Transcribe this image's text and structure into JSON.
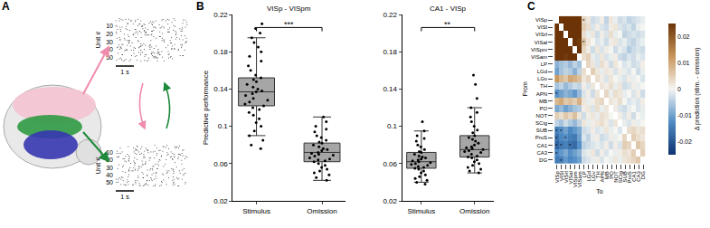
{
  "panel_labels": [
    "A",
    "B",
    "C"
  ],
  "panel_a": {
    "raster_ylabel": "Unit #",
    "raster_yticks": [
      10,
      20,
      30,
      40,
      50
    ],
    "scale_bar": "1 s"
  },
  "chart_data": [
    {
      "type": "box",
      "title": "VISp - VISpm",
      "ylabel": "Predictive performance",
      "categories": [
        "Stimulus",
        "Omission"
      ],
      "color": "#a6a6a6",
      "box": {
        "q1": [
          0.122,
          0.062
        ],
        "median": [
          0.137,
          0.072
        ],
        "q3": [
          0.152,
          0.082
        ],
        "lowerfence": [
          0.09,
          0.042
        ],
        "upperfence": [
          0.195,
          0.11
        ]
      },
      "points": [
        [
          0.21,
          0.205,
          0.2,
          0.195,
          0.19,
          0.185,
          0.18,
          0.175,
          0.17,
          0.165,
          0.16,
          0.155,
          0.152,
          0.15,
          0.148,
          0.145,
          0.142,
          0.14,
          0.138,
          0.137,
          0.135,
          0.133,
          0.13,
          0.128,
          0.126,
          0.124,
          0.122,
          0.12,
          0.118,
          0.115,
          0.112,
          0.108,
          0.104,
          0.1,
          0.095,
          0.09,
          0.085,
          0.08,
          0.076
        ],
        [
          0.11,
          0.105,
          0.1,
          0.097,
          0.094,
          0.09,
          0.088,
          0.085,
          0.083,
          0.082,
          0.08,
          0.078,
          0.076,
          0.075,
          0.074,
          0.072,
          0.071,
          0.07,
          0.069,
          0.068,
          0.066,
          0.065,
          0.064,
          0.063,
          0.062,
          0.06,
          0.058,
          0.056,
          0.054,
          0.052,
          0.05,
          0.048,
          0.045,
          0.042
        ]
      ],
      "ylim": [
        0.02,
        0.22
      ],
      "yticks": [
        0.02,
        0.06,
        0.1,
        0.14,
        0.18,
        0.22
      ],
      "significance": "***"
    },
    {
      "type": "box",
      "title": "CA1 - VISp",
      "categories": [
        "Stimulus",
        "Omission"
      ],
      "color": "#a6a6a6",
      "box": {
        "q1": [
          0.055,
          0.067
        ],
        "median": [
          0.062,
          0.075
        ],
        "q3": [
          0.072,
          0.09
        ],
        "lowerfence": [
          0.04,
          0.05
        ],
        "upperfence": [
          0.095,
          0.12
        ]
      },
      "points": [
        [
          0.105,
          0.095,
          0.09,
          0.087,
          0.084,
          0.08,
          0.078,
          0.075,
          0.073,
          0.072,
          0.07,
          0.068,
          0.067,
          0.066,
          0.065,
          0.064,
          0.063,
          0.062,
          0.061,
          0.06,
          0.059,
          0.058,
          0.057,
          0.056,
          0.055,
          0.054,
          0.052,
          0.05,
          0.048,
          0.046,
          0.044,
          0.042,
          0.04,
          0.038
        ],
        [
          0.155,
          0.145,
          0.13,
          0.12,
          0.115,
          0.11,
          0.105,
          0.1,
          0.096,
          0.093,
          0.09,
          0.088,
          0.086,
          0.084,
          0.082,
          0.08,
          0.078,
          0.077,
          0.076,
          0.075,
          0.074,
          0.073,
          0.072,
          0.07,
          0.068,
          0.067,
          0.066,
          0.064,
          0.062,
          0.06,
          0.058,
          0.056,
          0.054,
          0.052,
          0.05
        ]
      ],
      "ylim": [
        0.02,
        0.22
      ],
      "yticks": [
        0.02,
        0.06,
        0.1,
        0.14,
        0.18,
        0.22
      ],
      "significance": "**"
    },
    {
      "type": "heatmap",
      "xlabel": "To",
      "ylabel": "From",
      "categories": [
        "VISp",
        "VISl",
        "VISrl",
        "VISal",
        "VISpm",
        "VISam",
        "LP",
        "LGd",
        "LGv",
        "TH",
        "APN",
        "MB",
        "PO",
        "NOT",
        "SCig",
        "SUB",
        "ProS",
        "CA1",
        "CA3",
        "DG"
      ],
      "values": [
        [
          null,
          0.03,
          0.03,
          0.03,
          0.03,
          0.025,
          0.004,
          0.002,
          -0.003,
          -0.002,
          0.001,
          -0.004,
          0.002,
          -0.001,
          -0.003,
          -0.002,
          -0.004,
          -0.003,
          -0.002,
          -0.001
        ],
        [
          0.03,
          null,
          0.03,
          0.028,
          0.03,
          0.025,
          0.005,
          0.003,
          -0.002,
          0.001,
          -0.002,
          -0.003,
          0.001,
          0.002,
          -0.002,
          -0.003,
          -0.002,
          -0.004,
          -0.001,
          0
        ],
        [
          0.028,
          0.03,
          null,
          0.03,
          0.027,
          0.026,
          0.003,
          -0.001,
          0.002,
          -0.003,
          0.001,
          -0.002,
          0.003,
          -0.001,
          0,
          -0.004,
          -0.003,
          -0.002,
          -0.003,
          -0.002
        ],
        [
          0.03,
          0.029,
          0.03,
          null,
          0.028,
          0.024,
          0.006,
          0.002,
          0,
          -0.002,
          -0.001,
          -0.003,
          0.001,
          0.002,
          -0.002,
          -0.001,
          -0.003,
          -0.004,
          -0.002,
          -0.001
        ],
        [
          0.03,
          0.03,
          0.027,
          0.026,
          null,
          0.03,
          0.004,
          0.001,
          -0.003,
          0.002,
          -0.002,
          0.001,
          0,
          -0.003,
          -0.001,
          -0.002,
          -0.005,
          -0.003,
          -0.002,
          -0.003
        ],
        [
          0.026,
          0.025,
          0.024,
          0.025,
          0.03,
          null,
          0.003,
          0.005,
          -0.001,
          -0.002,
          0.002,
          -0.002,
          -0.001,
          0.001,
          -0.003,
          -0.004,
          -0.002,
          -0.003,
          -0.001,
          -0.002
        ],
        [
          -0.008,
          -0.006,
          -0.005,
          -0.007,
          -0.004,
          -0.006,
          null,
          0.004,
          0.002,
          -0.002,
          0.003,
          0.001,
          -0.003,
          0.002,
          0,
          -0.002,
          -0.001,
          -0.003,
          -0.002,
          0.001
        ],
        [
          -0.01,
          -0.006,
          -0.004,
          -0.005,
          -0.008,
          -0.004,
          0.003,
          null,
          0.005,
          0.002,
          -0.001,
          0.002,
          0.001,
          -0.002,
          0.001,
          -0.001,
          -0.002,
          0,
          -0.003,
          -0.001
        ],
        [
          0.012,
          0.008,
          0.006,
          0.01,
          0.009,
          0.007,
          0.002,
          0.004,
          null,
          0.003,
          0.001,
          -0.002,
          0.002,
          0,
          -0.001,
          -0.002,
          0.001,
          -0.001,
          0,
          -0.002
        ],
        [
          -0.006,
          -0.004,
          -0.007,
          -0.005,
          -0.003,
          -0.004,
          0.001,
          -0.002,
          0.002,
          null,
          0.002,
          0.001,
          0.003,
          -0.001,
          0.002,
          -0.003,
          -0.002,
          0.001,
          -0.001,
          0
        ],
        [
          -0.012,
          -0.01,
          -0.008,
          -0.009,
          -0.011,
          -0.007,
          -0.002,
          0.001,
          -0.003,
          0.002,
          null,
          0.004,
          -0.001,
          0.003,
          0.002,
          -0.001,
          0,
          -0.002,
          0.001,
          -0.003
        ],
        [
          0.008,
          0.01,
          0.006,
          0.007,
          0.005,
          0.009,
          0.002,
          -0.001,
          0.001,
          0.003,
          0.004,
          null,
          0.002,
          0.001,
          0.003,
          0,
          -0.002,
          -0.001,
          -0.002,
          0.001
        ],
        [
          -0.009,
          -0.007,
          -0.01,
          -0.008,
          -0.006,
          -0.005,
          0.001,
          0.002,
          -0.002,
          0.003,
          -0.001,
          0.002,
          null,
          0.001,
          -0.002,
          -0.003,
          -0.001,
          0,
          -0.002,
          -0.001
        ],
        [
          0.005,
          0.003,
          0.006,
          0.004,
          0.007,
          0.002,
          -0.003,
          0.001,
          0.002,
          -0.001,
          0.003,
          0.002,
          0,
          null,
          0.001,
          -0.002,
          0.001,
          -0.003,
          0,
          -0.001
        ],
        [
          -0.004,
          -0.006,
          -0.003,
          -0.005,
          -0.007,
          -0.004,
          0.002,
          -0.001,
          0.001,
          0.002,
          0.003,
          0.001,
          -0.002,
          0.002,
          null,
          -0.001,
          -0.002,
          0.001,
          -0.001,
          0
        ],
        [
          -0.014,
          -0.012,
          -0.01,
          -0.013,
          -0.011,
          -0.009,
          -0.003,
          -0.002,
          0.001,
          -0.002,
          -0.001,
          0.002,
          -0.001,
          0,
          -0.002,
          null,
          0.003,
          0.004,
          0.002,
          0.003
        ],
        [
          -0.016,
          -0.013,
          -0.012,
          -0.014,
          -0.015,
          -0.01,
          -0.002,
          -0.004,
          -0.001,
          0.001,
          -0.003,
          -0.002,
          0.001,
          -0.001,
          0,
          0.004,
          null,
          0.005,
          0.003,
          0.002
        ],
        [
          -0.018,
          -0.015,
          -0.014,
          -0.016,
          -0.017,
          -0.012,
          -0.004,
          -0.003,
          -0.002,
          -0.001,
          -0.002,
          0.001,
          -0.003,
          0.001,
          -0.002,
          0.005,
          0.004,
          null,
          0.006,
          0.004
        ],
        [
          -0.013,
          -0.011,
          -0.009,
          -0.012,
          -0.01,
          -0.008,
          -0.002,
          -0.001,
          0.002,
          -0.003,
          0.001,
          -0.002,
          0,
          -0.001,
          0.001,
          0.003,
          0.002,
          0.005,
          null,
          0.005
        ],
        [
          -0.015,
          -0.014,
          -0.011,
          -0.013,
          -0.012,
          -0.01,
          -0.003,
          -0.002,
          -0.001,
          0.001,
          -0.002,
          0,
          -0.001,
          0.002,
          -0.001,
          0.002,
          0.003,
          0.004,
          0.006,
          null
        ]
      ],
      "clim": [
        -0.025,
        0.025
      ],
      "cticks": [
        -0.02,
        -0.01,
        0,
        0.01,
        0.02
      ],
      "colorbar_label": "Δ prediction (stim. - omission)",
      "significance": "*",
      "significant_cells": [
        [
          15,
          0
        ],
        [
          15,
          1
        ],
        [
          16,
          0
        ],
        [
          16,
          2
        ],
        [
          17,
          0
        ],
        [
          17,
          1
        ],
        [
          17,
          3
        ],
        [
          18,
          0
        ],
        [
          19,
          1
        ],
        [
          0,
          6
        ],
        [
          3,
          6
        ],
        [
          10,
          0
        ]
      ]
    }
  ]
}
